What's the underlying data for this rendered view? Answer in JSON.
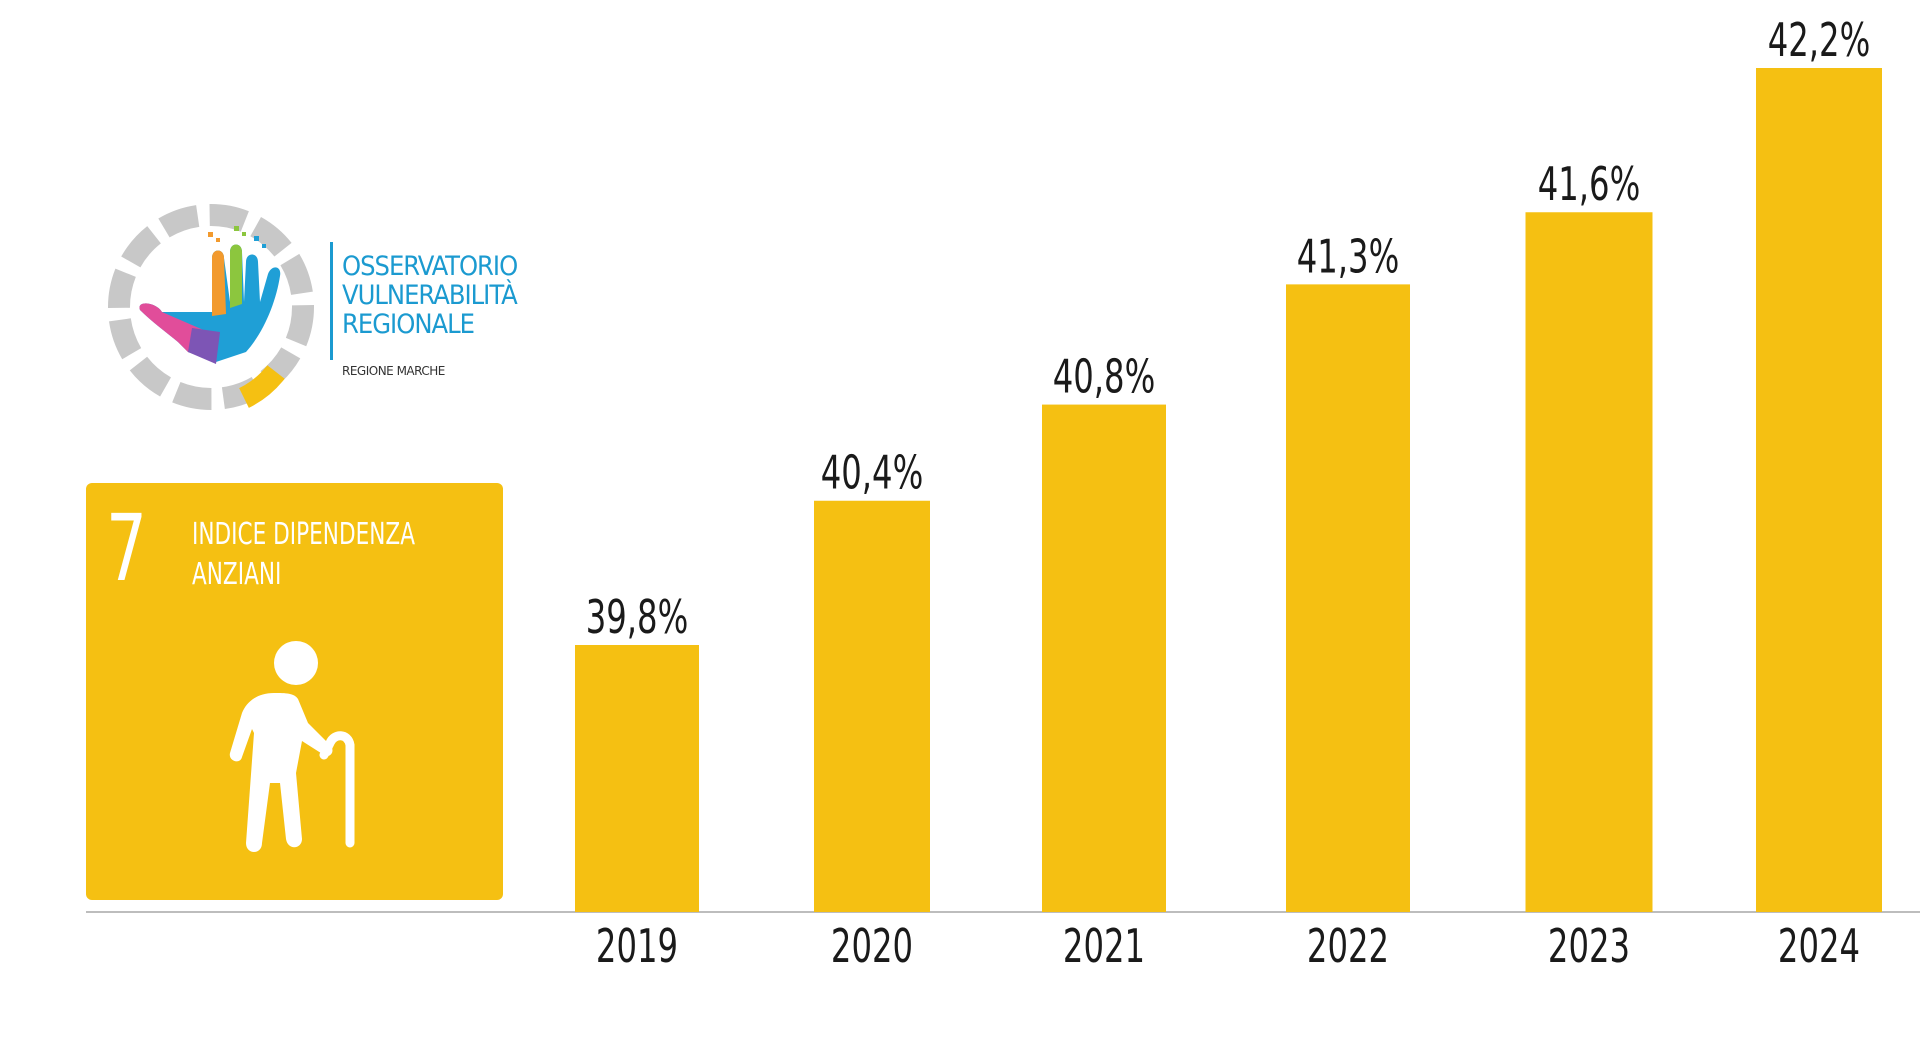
{
  "logo": {
    "lines": [
      "OSSERVATORIO",
      "VULNERABILITÀ",
      "REGIONALE"
    ],
    "subtitle": "REGIONE MARCHE"
  },
  "indicator": {
    "number": "7",
    "title_lines": [
      "INDICE DIPENDENZA",
      "ANZIANI"
    ],
    "icon": "elderly-person-with-cane-icon",
    "color": "#F5C012"
  },
  "chart_data": {
    "type": "bar",
    "categories": [
      "2019",
      "2020",
      "2021",
      "2022",
      "2023",
      "2024"
    ],
    "values": [
      39.8,
      40.4,
      40.8,
      41.3,
      41.6,
      42.2
    ],
    "labels": [
      "39,8%",
      "40,4%",
      "40,8%",
      "41,3%",
      "41,6%",
      "42,2%"
    ],
    "bar_color": "#F5C012",
    "grid": false,
    "legend": "none"
  }
}
